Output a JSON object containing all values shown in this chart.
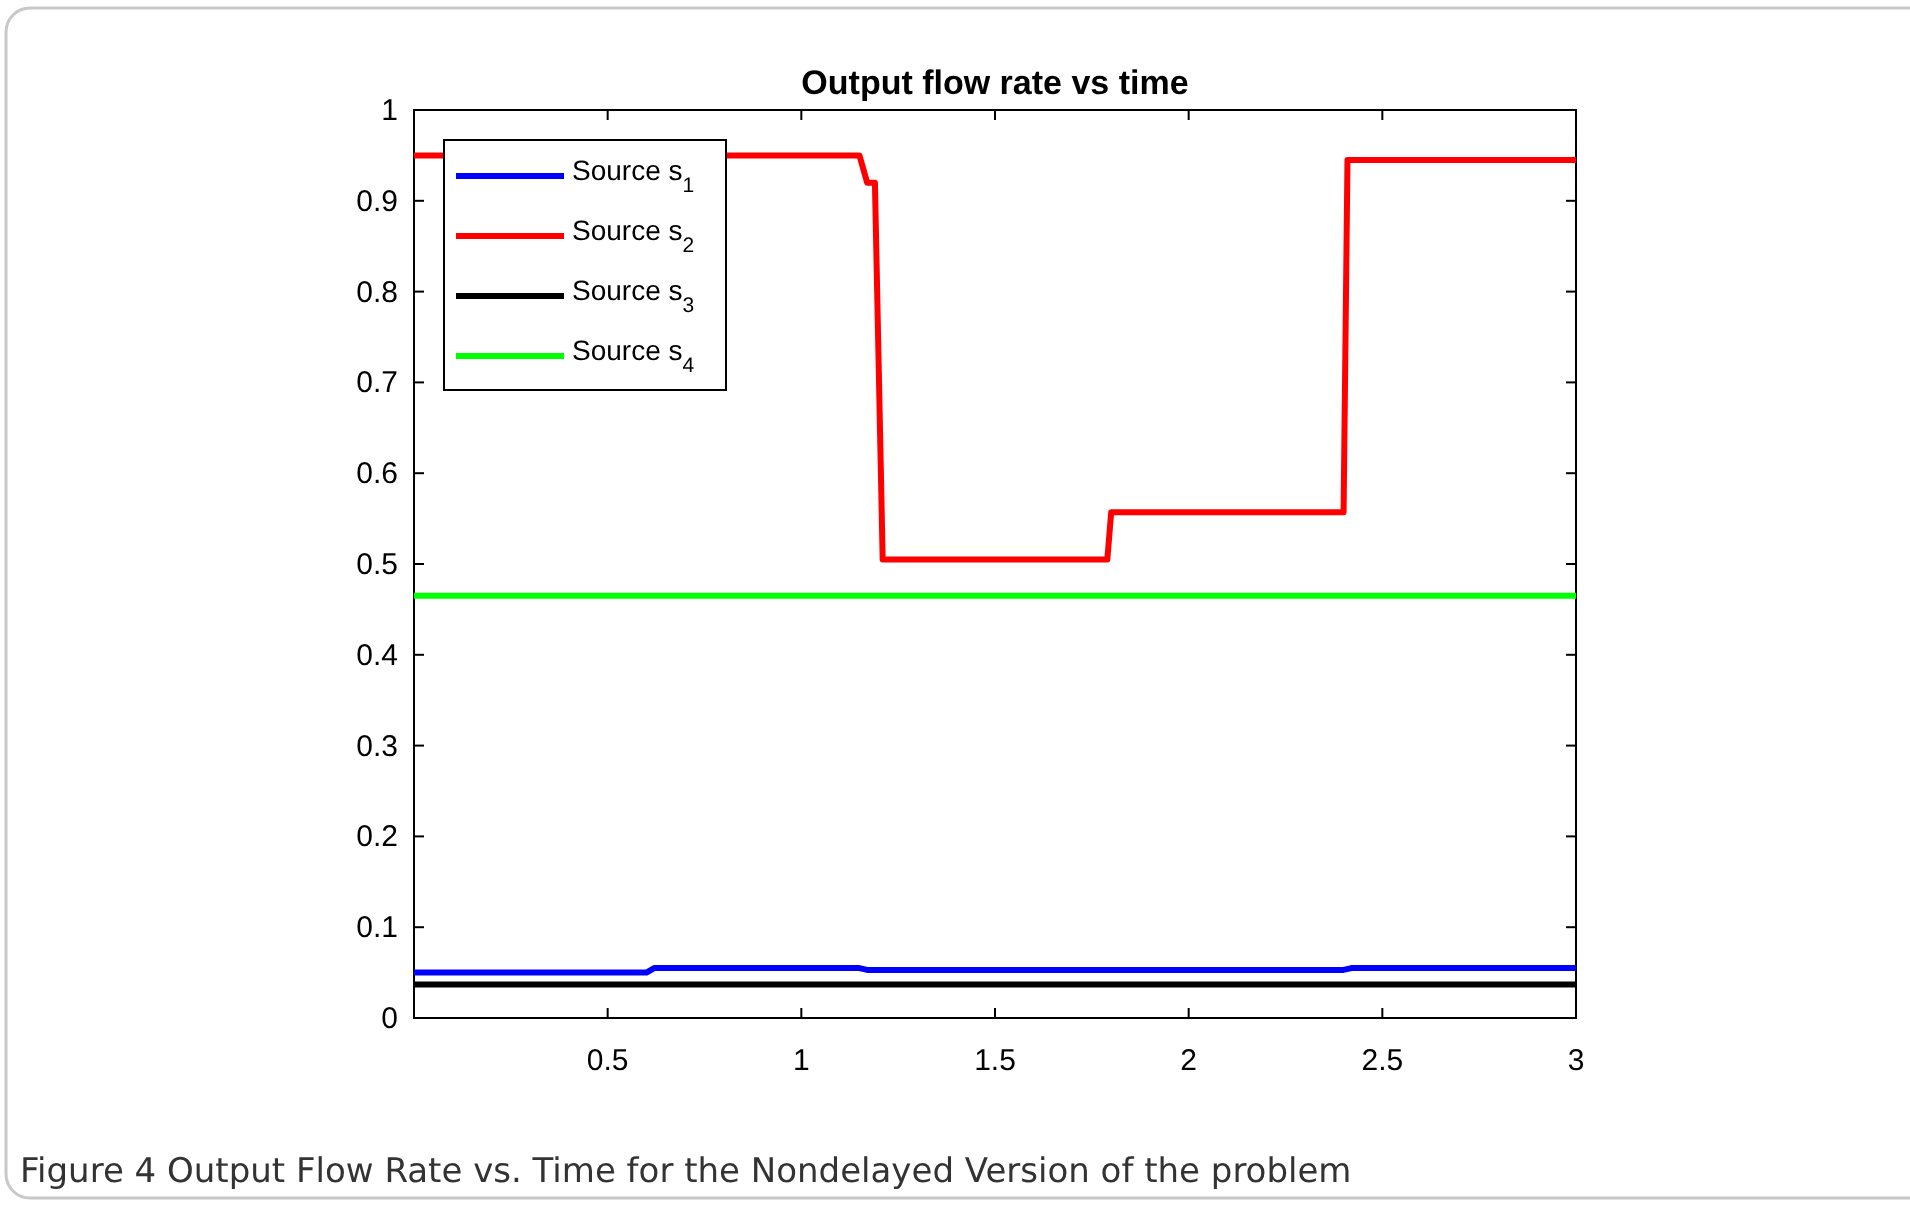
{
  "chart_data": {
    "type": "line",
    "title": "Output flow rate vs time",
    "annotations": [
      "Figure 4  Output Flow Rate vs. Time for the Nondelayed Version of the problem"
    ],
    "xlim": [
      0,
      3
    ],
    "xticks": [
      0.5,
      1,
      1.5,
      2,
      2.5,
      3
    ],
    "ylim": [
      0,
      1
    ],
    "yticks": [
      0,
      0.1,
      0.2,
      0.3,
      0.4,
      0.5,
      0.6,
      0.7,
      0.8,
      0.9,
      1
    ],
    "grid": false,
    "legend": "top left",
    "line_style": "solid",
    "marker": "none",
    "series": [
      {
        "name": "Source s$_{1}$",
        "color": "#0000ff",
        "x": [
          0,
          0.6,
          0.62,
          1.15,
          1.17,
          2.4,
          2.42,
          3
        ],
        "values": [
          0.05,
          0.05,
          0.055,
          0.055,
          0.053,
          0.053,
          0.055,
          0.055
        ]
      },
      {
        "name": "Source s$_{2}$",
        "color": "#ff0000",
        "x": [
          0,
          1.15,
          1.17,
          1.19,
          1.21,
          1.79,
          1.8,
          2.4,
          2.41,
          3
        ],
        "values": [
          0.95,
          0.95,
          0.92,
          0.92,
          0.505,
          0.505,
          0.557,
          0.557,
          0.945,
          0.945
        ]
      },
      {
        "name": "Source s$_{3}$",
        "color": "#000000",
        "x": [
          0,
          3
        ],
        "values": [
          0.037,
          0.037
        ]
      },
      {
        "name": "Source s$_{4}$",
        "color": "#00ff00",
        "x": [
          0,
          3
        ],
        "values": [
          0.465,
          0.465
        ]
      }
    ]
  }
}
